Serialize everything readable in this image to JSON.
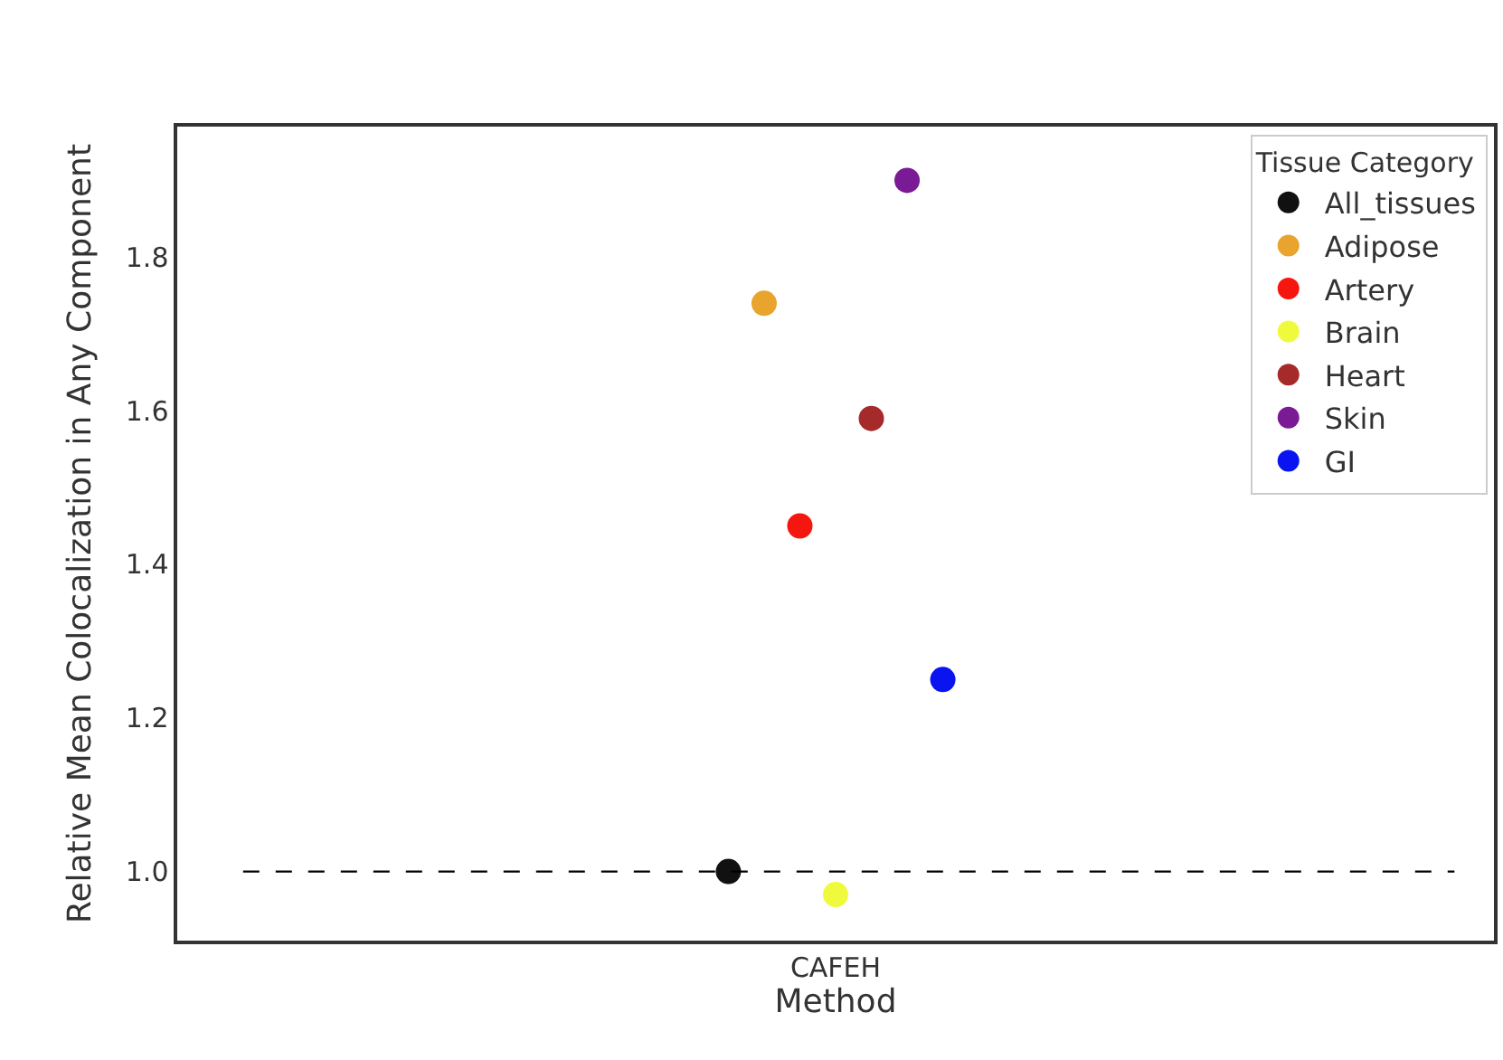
{
  "chart_data": {
    "type": "scatter",
    "categories": [
      "CAFEH"
    ],
    "xlabel": "Method",
    "ylabel": "Relative Mean Colocalization in Any Component",
    "legend_title": "Tissue Category",
    "series": [
      {
        "name": "All_tissues",
        "color": "#111111",
        "values": [
          1.0
        ]
      },
      {
        "name": "Adipose",
        "color": "#e8a42c",
        "values": [
          1.74
        ]
      },
      {
        "name": "Artery",
        "color": "#f5170f",
        "values": [
          1.45
        ]
      },
      {
        "name": "Brain",
        "color": "#f0fa3c",
        "values": [
          0.97
        ]
      },
      {
        "name": "Heart",
        "color": "#a52a2a",
        "values": [
          1.59
        ]
      },
      {
        "name": "Skin",
        "color": "#7a1a95",
        "values": [
          1.9
        ]
      },
      {
        "name": "GI",
        "color": "#0a14f0",
        "values": [
          1.25
        ]
      }
    ],
    "ylim": [
      0.91,
      1.97
    ],
    "yticks": [
      {
        "value": 1.0,
        "label": "1.0"
      },
      {
        "value": 1.2,
        "label": "1.2"
      },
      {
        "value": 1.4,
        "label": "1.4"
      },
      {
        "value": 1.6,
        "label": "1.6"
      },
      {
        "value": 1.8,
        "label": "1.8"
      }
    ],
    "ref_lines": [
      {
        "axis": "y",
        "value": 1.0,
        "color": "#000000",
        "line_style": "dashed"
      }
    ],
    "legend": "top right",
    "marker": "circle"
  }
}
